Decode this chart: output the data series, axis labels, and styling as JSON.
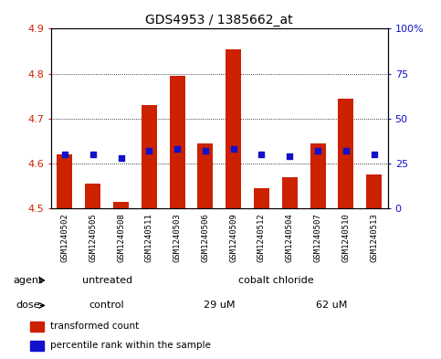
{
  "title": "GDS4953 / 1385662_at",
  "samples": [
    "GSM1240502",
    "GSM1240505",
    "GSM1240508",
    "GSM1240511",
    "GSM1240503",
    "GSM1240506",
    "GSM1240509",
    "GSM1240512",
    "GSM1240504",
    "GSM1240507",
    "GSM1240510",
    "GSM1240513"
  ],
  "transformed_counts": [
    4.62,
    4.555,
    4.515,
    4.73,
    4.795,
    4.645,
    4.855,
    4.545,
    4.57,
    4.645,
    4.745,
    4.575
  ],
  "percentile_ranks": [
    30,
    30,
    28,
    32,
    33,
    32,
    33,
    30,
    29,
    32,
    32,
    30
  ],
  "bar_color": "#cc2200",
  "dot_color": "#1111cc",
  "ylim_left": [
    4.5,
    4.9
  ],
  "ylim_right": [
    0,
    100
  ],
  "yticks_left": [
    4.5,
    4.6,
    4.7,
    4.8,
    4.9
  ],
  "yticks_right": [
    0,
    25,
    50,
    75,
    100
  ],
  "ytick_labels_right": [
    "0",
    "25",
    "50",
    "75",
    "100%"
  ],
  "agent_groups": [
    {
      "label": "untreated",
      "start": 0,
      "end": 4,
      "color": "#aaeaaa"
    },
    {
      "label": "cobalt chloride",
      "start": 4,
      "end": 12,
      "color": "#44dd44"
    }
  ],
  "dose_groups": [
    {
      "label": "control",
      "start": 0,
      "end": 4,
      "color": "#ee88ee"
    },
    {
      "label": "29 uM",
      "start": 4,
      "end": 8,
      "color": "#dd44dd"
    },
    {
      "label": "62 uM",
      "start": 8,
      "end": 12,
      "color": "#dd44dd"
    }
  ],
  "legend_items": [
    {
      "color": "#cc2200",
      "label": "transformed count"
    },
    {
      "color": "#1111cc",
      "label": "percentile rank within the sample"
    }
  ],
  "bar_baseline": 4.5,
  "bar_width": 0.55,
  "background_color": "#ffffff",
  "plot_bg": "#ffffff",
  "tick_color_left": "#cc2200",
  "tick_color_right": "#1111cc",
  "title_fontsize": 10,
  "tick_fontsize": 8,
  "label_fontsize": 8,
  "xtick_fontsize": 6.5
}
